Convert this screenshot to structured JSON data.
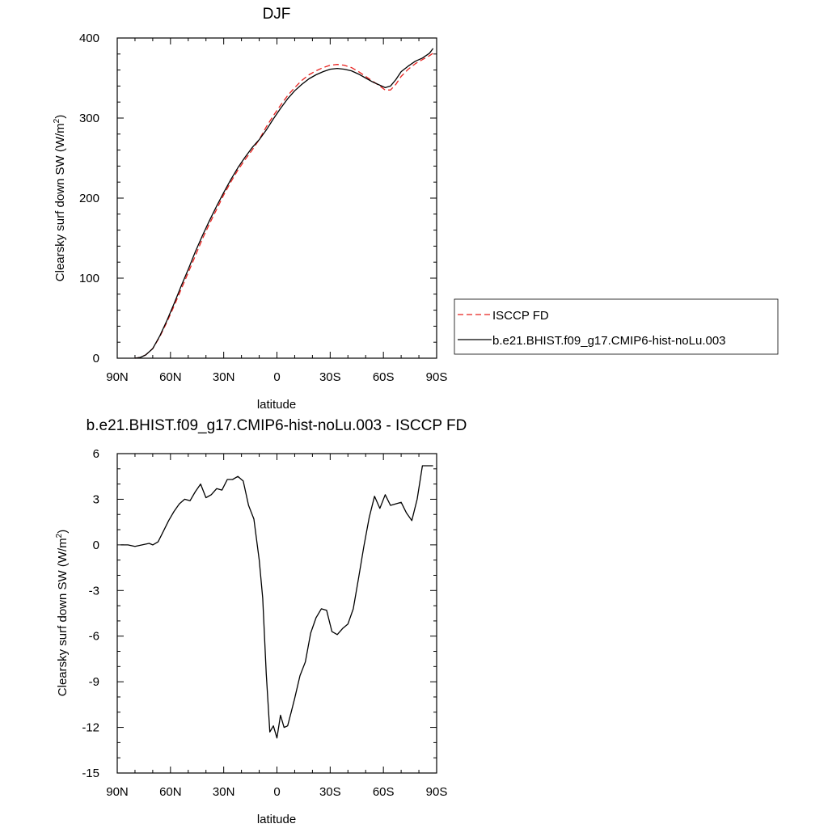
{
  "chart_data": [
    {
      "type": "line",
      "title": "DJF",
      "xlabel": "latitude",
      "ylabel_main": "Clearsky surf down SW (W/m",
      "ylabel_sup": "2",
      "ylabel_close": ")",
      "xlim": [
        90,
        -90
      ],
      "ylim": [
        0,
        400
      ],
      "x_ticks": [
        90,
        60,
        30,
        0,
        -30,
        -60,
        -90
      ],
      "x_tick_labels": [
        "90N",
        "60N",
        "30N",
        "0",
        "30S",
        "60S",
        "90S"
      ],
      "y_ticks": [
        0,
        100,
        200,
        300,
        400
      ],
      "y_tick_labels": [
        "0",
        "100",
        "200",
        "300",
        "400"
      ],
      "legend_position": "right",
      "series": [
        {
          "name": "ISCCP FD",
          "color": "#e8221f",
          "dash": "dashed",
          "x": [
            80,
            77,
            74,
            70,
            66,
            62,
            58,
            54,
            50,
            46,
            42,
            38,
            34,
            30,
            26,
            22,
            18,
            14,
            10,
            6,
            2,
            -2,
            -6,
            -10,
            -14,
            -18,
            -22,
            -26,
            -30,
            -34,
            -38,
            -42,
            -46,
            -50,
            -54,
            -58,
            -61,
            -64,
            -67,
            -70,
            -74,
            -78,
            -82,
            -86,
            -88
          ],
          "y": [
            0,
            1,
            4,
            12,
            27,
            45,
            65,
            86,
            107,
            128,
            149,
            168,
            186,
            204,
            220,
            235,
            248,
            260,
            273,
            289,
            303,
            316,
            328,
            338,
            347,
            354,
            359,
            363,
            366,
            367,
            366,
            363,
            358,
            352,
            346,
            340,
            335,
            335,
            342,
            352,
            361,
            368,
            373,
            378,
            381
          ]
        },
        {
          "name": "b.e21.BHIST.f09_g17.CMIP6-hist-noLu.003",
          "color": "#000000",
          "dash": "solid",
          "x": [
            80,
            77,
            74,
            70,
            66,
            62,
            58,
            54,
            50,
            46,
            42,
            38,
            34,
            30,
            26,
            22,
            18,
            14,
            10,
            6,
            2,
            -2,
            -6,
            -10,
            -14,
            -18,
            -22,
            -26,
            -30,
            -34,
            -38,
            -42,
            -46,
            -50,
            -54,
            -58,
            -61,
            -64,
            -67,
            -70,
            -74,
            -78,
            -82,
            -86,
            -88
          ],
          "y": [
            0,
            1,
            4,
            12,
            28,
            47,
            68,
            90,
            111,
            133,
            153,
            172,
            190,
            207,
            223,
            238,
            251,
            263,
            273,
            285,
            299,
            312,
            324,
            334,
            342,
            349,
            354,
            358,
            361,
            362,
            361,
            359,
            355,
            350,
            345,
            341,
            338,
            340,
            348,
            358,
            365,
            371,
            375,
            381,
            387
          ]
        }
      ]
    },
    {
      "type": "line",
      "title": "b.e21.BHIST.f09_g17.CMIP6-hist-noLu.003 - ISCCP FD",
      "xlabel": "latitude",
      "ylabel_main": "Clearsky surf down SW (W/m",
      "ylabel_sup": "2",
      "ylabel_close": ")",
      "xlim": [
        90,
        -90
      ],
      "ylim": [
        -15,
        6
      ],
      "x_ticks": [
        90,
        60,
        30,
        0,
        -30,
        -60,
        -90
      ],
      "x_tick_labels": [
        "90N",
        "60N",
        "30N",
        "0",
        "30S",
        "60S",
        "90S"
      ],
      "y_ticks": [
        -15,
        -12,
        -9,
        -6,
        -3,
        0,
        3,
        6
      ],
      "y_tick_labels": [
        "-15",
        "-12",
        "-9",
        "-6",
        "-3",
        "0",
        "3",
        "6"
      ],
      "series": [
        {
          "color": "#000000",
          "dash": "solid",
          "x": [
            88,
            84,
            80,
            76,
            72,
            70,
            67,
            64,
            61,
            58,
            55,
            52,
            49,
            46,
            43,
            40,
            37,
            34,
            31,
            28,
            25,
            22,
            19,
            16,
            13,
            10,
            8,
            6,
            4,
            2,
            0,
            -2,
            -4,
            -6,
            -8,
            -10,
            -13,
            -16,
            -19,
            -22,
            -25,
            -28,
            -31,
            -34,
            -37,
            -40,
            -43,
            -46,
            -49,
            -52,
            -55,
            -58,
            -61,
            -64,
            -67,
            -70,
            -73,
            -76,
            -79,
            -82,
            -85,
            -88
          ],
          "y": [
            0,
            0,
            -0.1,
            0,
            0.1,
            0,
            0.2,
            0.9,
            1.6,
            2.2,
            2.7,
            3.0,
            2.9,
            3.5,
            4.0,
            3.1,
            3.3,
            3.7,
            3.6,
            4.3,
            4.3,
            4.5,
            4.2,
            2.6,
            1.7,
            -1.0,
            -3.5,
            -8.5,
            -12.3,
            -11.9,
            -12.7,
            -11.2,
            -12.0,
            -11.9,
            -11.0,
            -10.1,
            -8.6,
            -7.7,
            -5.8,
            -4.8,
            -4.2,
            -4.3,
            -5.7,
            -5.9,
            -5.5,
            -5.2,
            -4.2,
            -2.2,
            -0.1,
            1.8,
            3.2,
            2.4,
            3.3,
            2.6,
            2.7,
            2.8,
            2.1,
            1.6,
            3.0,
            5.2,
            5.2,
            5.2
          ]
        }
      ]
    }
  ]
}
